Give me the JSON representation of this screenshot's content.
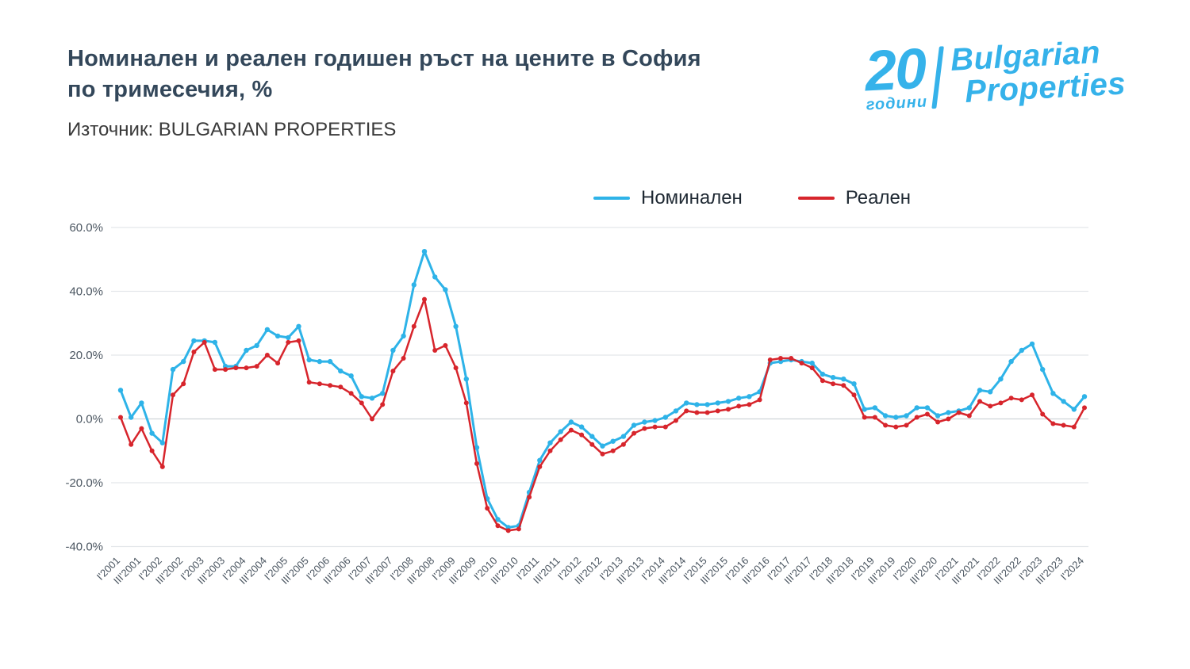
{
  "header": {
    "title_line1": "Номинален и реален годишен ръст на цените в София",
    "title_line2": "по тримесечия, %",
    "source": "Източник: BULGARIAN PROPERTIES"
  },
  "logo": {
    "years_number": "20",
    "years_word": "години",
    "brand_line1": "Bulgarian",
    "brand_line2": "Properties",
    "color": "#35b2ea"
  },
  "chart_data": {
    "type": "line",
    "title": "Номинален и реален годишен ръст на цените в София по тримесечия, %",
    "xlabel": "",
    "ylabel": "",
    "ylim": [
      -40,
      60
    ],
    "grid": true,
    "legend_position": "top-center",
    "x_note": "Quarterly points from I'2001 to I'2024; axis labels shown every second quarter",
    "y_ticks": [
      {
        "value": 60,
        "label": "60.0%"
      },
      {
        "value": 40,
        "label": "40.0%"
      },
      {
        "value": 20,
        "label": "20.0%"
      },
      {
        "value": 0,
        "label": "0.0%"
      },
      {
        "value": -20,
        "label": "-20.0%"
      },
      {
        "value": -40,
        "label": "-40.0%"
      }
    ],
    "x_tick_labels": [
      "I'2001",
      "III'2001",
      "I'2002",
      "III'2002",
      "I'2003",
      "III'2003",
      "I'2004",
      "III'2004",
      "I'2005",
      "III'2005",
      "I'2006",
      "III'2006",
      "I'2007",
      "III'2007",
      "I'2008",
      "III'2008",
      "I'2009",
      "III'2009",
      "I'2010",
      "III'2010",
      "I'2011",
      "III'2011",
      "I'2012",
      "III'2012",
      "I'2013",
      "III'2013",
      "I'2014",
      "III'2014",
      "I'2015",
      "III'2015",
      "I'2016",
      "III'2016",
      "I'2017",
      "III'2017",
      "I'2018",
      "III'2018",
      "I'2019",
      "III'2019",
      "I'2020",
      "III'2020",
      "I'2021",
      "III'2021",
      "I'2022",
      "III'2022",
      "I'2023",
      "III'2023",
      "I'2024"
    ],
    "series": [
      {
        "id": "nominal",
        "name": "Номинален",
        "color": "#2eb3e8",
        "values": [
          9,
          0.5,
          5,
          -4.5,
          -7.5,
          15.5,
          18,
          24.5,
          24.5,
          24,
          16.5,
          16.5,
          21.5,
          23,
          28,
          26,
          25.5,
          29,
          18.5,
          18,
          18,
          15,
          13.5,
          7,
          6.5,
          8,
          21.5,
          26,
          42,
          52.5,
          44.5,
          40.5,
          29,
          12.5,
          -9,
          -25,
          -31.5,
          -34,
          -33.5,
          -23,
          -13,
          -7.5,
          -4,
          -1,
          -2.5,
          -5.5,
          -8.5,
          -7,
          -5.5,
          -2,
          -1,
          -0.5,
          0.5,
          2.5,
          5,
          4.5,
          4.5,
          5,
          5.5,
          6.5,
          7,
          8.5,
          17.5,
          18,
          18.5,
          18,
          17.5,
          14,
          13,
          12.5,
          11,
          3,
          3.5,
          1,
          0.5,
          1,
          3.5,
          3.5,
          1,
          2,
          2.5,
          3.5,
          9,
          8.5,
          12.5,
          18,
          21.5,
          23.5,
          15.5,
          8,
          5.5,
          3,
          7
        ]
      },
      {
        "id": "real",
        "name": "Реален",
        "color": "#d7252c",
        "values": [
          0.5,
          -8,
          -3,
          -10,
          -15,
          7.5,
          11,
          21,
          24,
          15.5,
          15.5,
          16,
          16,
          16.5,
          20,
          17.5,
          24,
          24.5,
          11.5,
          11,
          10.5,
          10,
          8,
          5,
          0,
          4.5,
          15,
          19,
          29,
          37.5,
          21.5,
          23,
          16,
          5,
          -14,
          -28,
          -33.5,
          -35,
          -34.5,
          -24.5,
          -15,
          -10,
          -6.5,
          -3.5,
          -5,
          -8,
          -11,
          -10,
          -8,
          -4.5,
          -3,
          -2.5,
          -2.5,
          -0.5,
          2.5,
          2,
          2,
          2.5,
          3,
          4,
          4.5,
          6,
          18.5,
          19,
          19,
          17.5,
          16,
          12,
          11,
          10.5,
          7.5,
          0.5,
          0.5,
          -2,
          -2.5,
          -2,
          0.5,
          1.5,
          -1,
          0,
          2,
          1,
          5.5,
          4,
          5,
          6.5,
          6,
          7.5,
          1.5,
          -1.5,
          -2,
          -2.5,
          3.5
        ]
      }
    ]
  }
}
